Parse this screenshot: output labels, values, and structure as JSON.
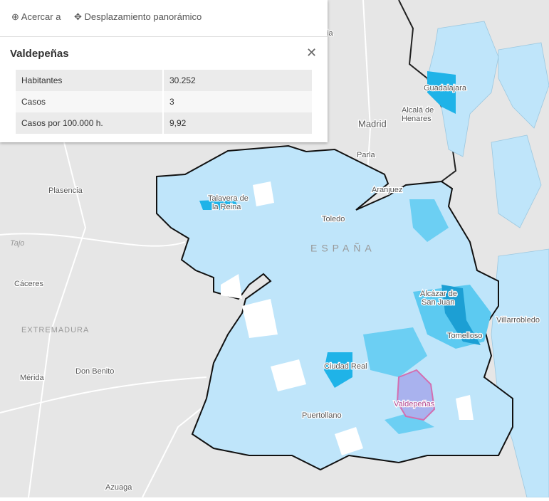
{
  "popup": {
    "actions": [
      "Acercar a",
      "Desplazamiento panorámico"
    ],
    "title": "Valdepeñas",
    "table": {
      "rows": [
        [
          "Habitantes",
          "30.252"
        ],
        [
          "Casos",
          "3"
        ],
        [
          "Casos por 100.000 h.",
          "9,92"
        ]
      ]
    }
  },
  "map": {
    "labels": {
      "guadalajara": "Guadalajara",
      "alcala": [
        "Alcalá de",
        "Henares"
      ],
      "madrid": "Madrid",
      "parla": "Parla",
      "aranjuez": "Aranjuez",
      "plasencia": "Plasencia",
      "talavera": [
        "Talavera de",
        "la Reina"
      ],
      "toledo": "Toledo",
      "espana": "ESPAÑA",
      "tajo": "Tajo",
      "caceres": "Cáceres",
      "extremadura": "EXTREMADURA",
      "alcazar": [
        "Alcázar de",
        "San Juan"
      ],
      "tomelloso": "Tomelloso",
      "villarrobledo": "Villarrobledo",
      "merida": "Mérida",
      "donbenito": "Don Benito",
      "ciudadreal": "Ciudad Real",
      "valdepenas": "Valdepeñas",
      "puertollano": "Puertollano",
      "azuaga": "Azuaga",
      "clipped": "ia"
    }
  }
}
